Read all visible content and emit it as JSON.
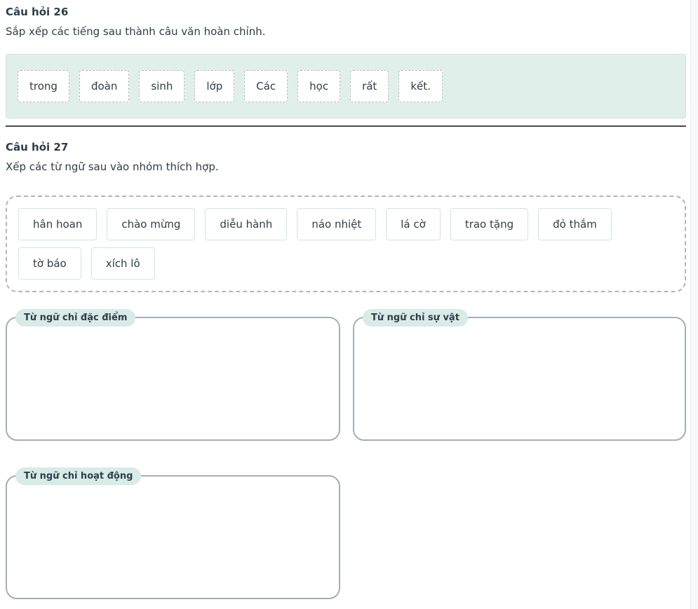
{
  "questions": [
    {
      "title": "Câu hỏi 26",
      "prompt": "Sắp xếp các tiếng sau thành câu văn hoàn chỉnh.",
      "tiles": [
        "trong",
        "đoàn",
        "sinh",
        "lớp",
        "Các",
        "học",
        "rất",
        "kết."
      ]
    },
    {
      "title": "Câu hỏi 27",
      "prompt": "Xếp các từ ngữ sau vào nhóm thích hợp.",
      "tiles": [
        "hân hoan",
        "chào mừng",
        "diễu hành",
        "náo nhiệt",
        "lá cờ",
        "trao tặng",
        "đỏ thắm",
        "tờ báo",
        "xích lô"
      ],
      "groups": [
        {
          "label": "Từ ngữ chỉ đặc điểm"
        },
        {
          "label": "Từ ngữ chỉ sự vật"
        },
        {
          "label": "Từ ngữ chỉ hoạt động"
        }
      ]
    }
  ],
  "colors": {
    "accent_mint_bg": "#e1efeb",
    "pill_bg": "#d8ebe6",
    "tile_solid_border": "#cde7e1",
    "zone_border": "#a7adb5",
    "text": "#2e3d49",
    "divider": "#46494e"
  }
}
